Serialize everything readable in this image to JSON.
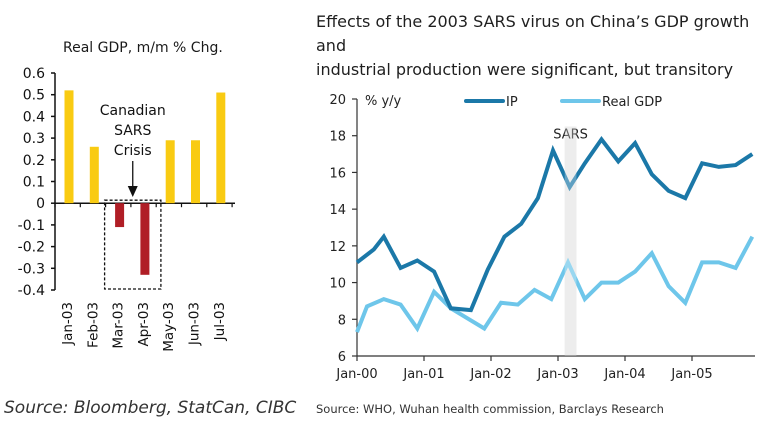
{
  "chart_data": [
    {
      "type": "bar",
      "title": "Real GDP, m/m % Chg.",
      "xlabel": "",
      "ylabel": "",
      "categories": [
        "Jan-03",
        "Feb-03",
        "Mar-03",
        "Apr-03",
        "May-03",
        "Jun-03",
        "Jul-03"
      ],
      "values": [
        0.52,
        0.26,
        -0.11,
        -0.33,
        0.29,
        0.29,
        0.51
      ],
      "ylim": [
        -0.4,
        0.6
      ],
      "yticks": [
        "0.6",
        "0.5",
        "0.4",
        "0.3",
        "0.2",
        "0.1",
        "0",
        "-0.1",
        "-0.2",
        "-0.3",
        "-0.4"
      ],
      "ytick_values": [
        0.6,
        0.5,
        0.4,
        0.3,
        0.2,
        0.1,
        0,
        -0.1,
        -0.2,
        -0.3,
        -0.4
      ],
      "grid": false,
      "colors": {
        "positive": "#F9CB12",
        "negative": "#B01E26"
      },
      "annotation": {
        "text_lines": [
          "Canadian",
          "SARS",
          "Crisis"
        ],
        "highlighted_categories": [
          "Mar-03",
          "Apr-03"
        ],
        "style": "dashed box with arrow"
      },
      "source": "Source: Bloomberg, StatCan, CIBC"
    },
    {
      "type": "line",
      "title": "Effects of the 2003 SARS virus on China's GDP growth and industrial production were significant, but transitory",
      "title_lines": [
        "Effects of the 2003 SARS virus on China’s GDP growth and",
        "industrial production were significant, but transitory"
      ],
      "ylabel": "% y/y",
      "xlabel": "",
      "ylim": [
        6,
        20
      ],
      "yticks": [
        "20",
        "18",
        "16",
        "14",
        "12",
        "10",
        "8",
        "6"
      ],
      "ytick_values": [
        20,
        18,
        16,
        14,
        12,
        10,
        8,
        6
      ],
      "xticks": [
        "Jan-00",
        "Jan-01",
        "Jan-02",
        "Jan-03",
        "Jan-04",
        "Jan-05"
      ],
      "xtick_positions": [
        0,
        4,
        8,
        12,
        16,
        20
      ],
      "x_frequency": "quarterly",
      "x_range": [
        0,
        24
      ],
      "grid": false,
      "legend": {
        "position": "top",
        "entries": [
          "IP",
          "Real GDP"
        ]
      },
      "shaded_region": {
        "label": "SARS",
        "x_start": 12.4,
        "x_end": 13.1,
        "color": "#E6E6E6"
      },
      "series": [
        {
          "name": "IP",
          "color": "#1B78A8",
          "x": [
            0,
            1,
            1.6,
            2.6,
            3.6,
            4.6,
            5.6,
            6.8,
            7.8,
            8.8,
            9.8,
            10.8,
            11.7,
            12.7,
            13.6,
            14.6,
            15.6,
            16.6,
            17.6,
            18.6,
            19.6,
            20.6,
            21.6,
            22.6,
            23.6
          ],
          "values": [
            11.1,
            11.8,
            12.5,
            10.8,
            11.2,
            10.6,
            8.6,
            8.5,
            10.7,
            12.5,
            13.2,
            14.6,
            17.2,
            15.2,
            16.5,
            17.8,
            16.6,
            17.6,
            15.9,
            15.0,
            14.6,
            16.5,
            16.3,
            16.4,
            17.0
          ]
        },
        {
          "name": "Real GDP",
          "color": "#6EC6EA",
          "x": [
            0,
            0.6,
            1.6,
            2.6,
            3.6,
            4.6,
            5.6,
            7.6,
            8.6,
            9.6,
            10.6,
            11.6,
            12.6,
            13.6,
            14.6,
            15.6,
            16.6,
            17.6,
            18.6,
            19.6,
            20.6,
            21.6,
            22.6,
            23.6
          ],
          "values": [
            7.3,
            8.7,
            9.1,
            8.8,
            7.5,
            9.5,
            8.6,
            7.5,
            8.9,
            8.8,
            9.6,
            9.1,
            11.1,
            9.1,
            10.0,
            10.0,
            10.6,
            11.6,
            9.8,
            8.9,
            11.1,
            11.1,
            10.8,
            12.5
          ]
        }
      ],
      "source": "Source: WHO, Wuhan health commission, Barclays Research"
    }
  ]
}
